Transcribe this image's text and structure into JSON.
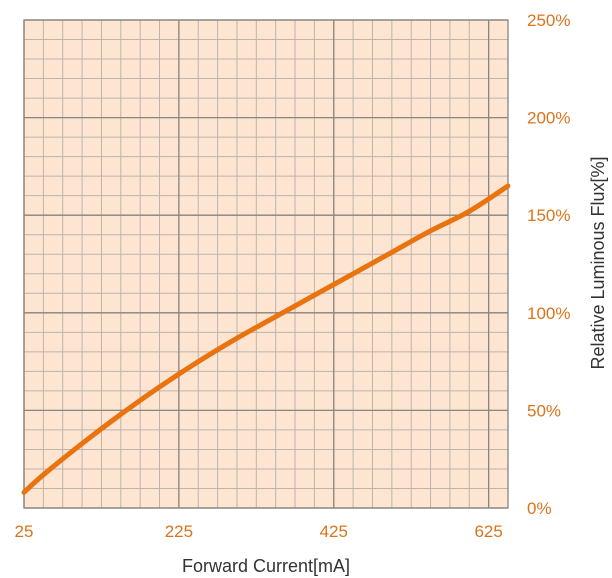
{
  "chart_data": {
    "type": "line",
    "title": "",
    "xlabel": "Forward Current[mA]",
    "ylabel": "Relative Luminous Flux[%]",
    "xlim": [
      25,
      650
    ],
    "ylim": [
      0,
      250
    ],
    "x_ticks": [
      25,
      225,
      425,
      625
    ],
    "x_tick_labels": [
      "25",
      "225",
      "425",
      "625"
    ],
    "y_ticks": [
      0,
      50,
      100,
      150,
      200,
      250
    ],
    "y_tick_labels": [
      "0%",
      "50%",
      "100%",
      "150%",
      "200%",
      "250%"
    ],
    "y_axis_side": "right",
    "grid": true,
    "series": [
      {
        "x": [
          25,
          50,
          100,
          150,
          200,
          250,
          300,
          350,
          400,
          450,
          500,
          550,
          600,
          650
        ],
        "y": [
          8,
          17,
          33,
          48,
          62,
          75,
          87,
          98,
          109,
          120,
          131,
          142,
          152,
          165
        ]
      }
    ],
    "colors": {
      "plot_background": "#fde5d2",
      "minor_grid": "#bdb4ac",
      "major_grid": "#8a8580",
      "line": "#e8730f",
      "tick_label": "#d9741c"
    }
  }
}
